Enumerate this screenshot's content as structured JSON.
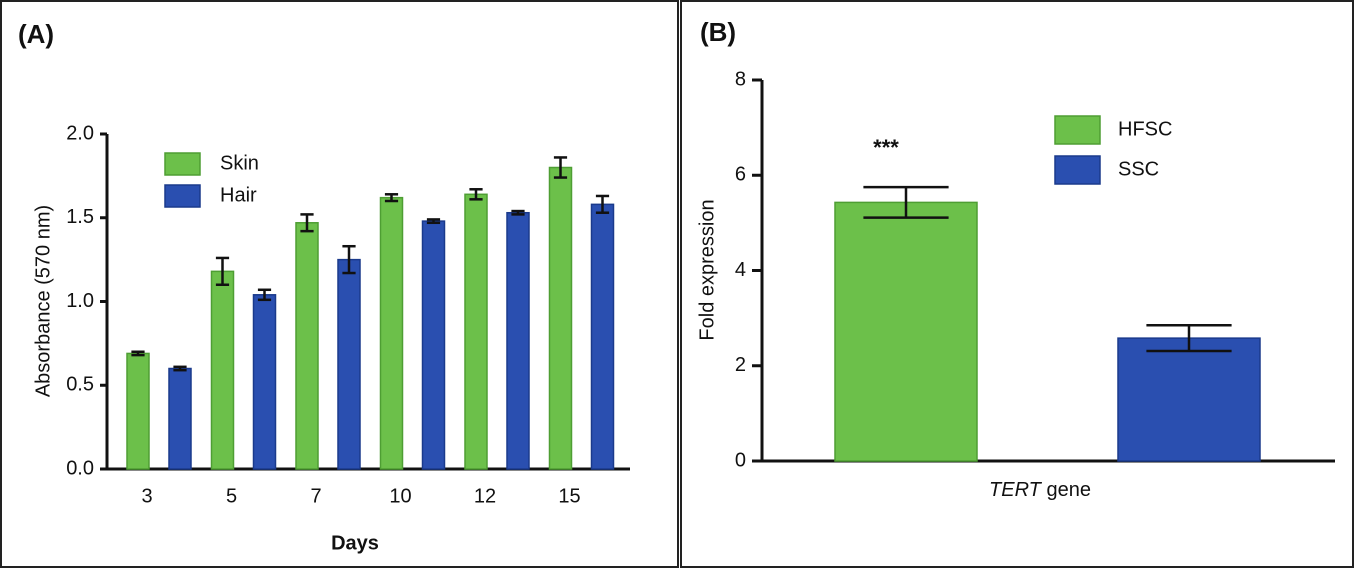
{
  "chart_data": [
    {
      "type": "bar",
      "title": "(A)",
      "y_label": "Absorbance (570 nm)",
      "x_label": "Days",
      "categories": [
        "3",
        "5",
        "7",
        "10",
        "12",
        "15"
      ],
      "series": [
        {
          "name": "Skin",
          "color": "#6cc04a",
          "values": [
            0.69,
            1.18,
            1.47,
            1.62,
            1.64,
            1.8
          ],
          "errors": [
            0.01,
            0.08,
            0.05,
            0.02,
            0.03,
            0.06
          ]
        },
        {
          "name": "Hair",
          "color": "#2a4fb0",
          "values": [
            0.6,
            1.04,
            1.25,
            1.48,
            1.53,
            1.58
          ],
          "errors": [
            0.01,
            0.03,
            0.08,
            0.01,
            0.01,
            0.05
          ]
        }
      ],
      "ylim": [
        0,
        2
      ],
      "yticks": [
        {
          "value": 0,
          "label": "0.0"
        },
        0.5,
        {
          "value": 1,
          "label": "1.0"
        },
        1.5,
        {
          "value": 2,
          "label": "2.0"
        }
      ]
    },
    {
      "type": "bar",
      "title": "(B)",
      "y_label": "Fold expression",
      "x_label_parts": [
        "TERT",
        "gene"
      ],
      "series": [
        {
          "name": "HFSC",
          "color": "#6cc04a",
          "values": [
            5.43
          ],
          "errors": [
            0.32
          ]
        },
        {
          "name": "SSC",
          "color": "#2a4fb0",
          "values": [
            2.58
          ],
          "errors": [
            0.27
          ]
        }
      ],
      "annotation": "***",
      "ylim": [
        0,
        8
      ],
      "yticks": [
        0,
        2,
        4,
        6,
        8
      ]
    }
  ]
}
